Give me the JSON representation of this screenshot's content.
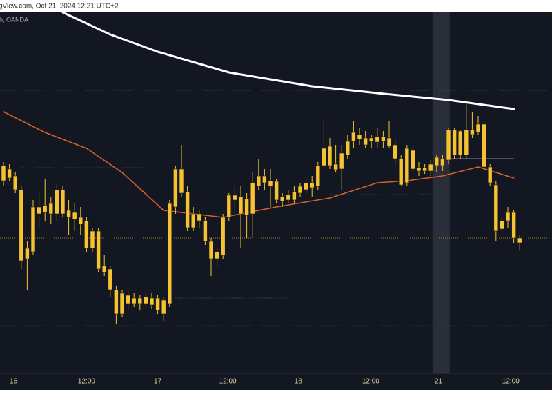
{
  "header": {
    "source": "gView.com, Oct 21, 2024 12:21 UTC+2"
  },
  "chart_data": {
    "type": "candlestick",
    "symbol": "h, OANDA",
    "x": [
      0,
      1,
      2,
      3,
      4,
      5,
      6,
      7,
      8,
      9,
      10,
      11,
      12,
      13,
      14,
      15,
      16,
      17,
      18,
      19,
      20,
      21,
      22,
      23,
      24,
      25,
      26,
      27,
      28,
      29,
      30,
      31,
      32,
      33,
      34,
      35,
      36,
      37,
      38,
      39,
      40,
      41,
      42,
      43,
      44,
      45,
      46,
      47,
      48,
      49,
      50,
      51,
      52,
      53,
      54,
      55,
      56,
      57,
      58,
      59,
      60,
      61,
      62,
      63,
      64,
      65,
      66,
      67,
      68,
      69,
      70,
      71,
      72,
      73,
      74,
      75,
      76,
      77,
      78,
      79,
      80,
      81,
      82,
      83,
      84,
      85,
      86,
      87
    ],
    "open": [
      300,
      295,
      285,
      265,
      165,
      175,
      230,
      232,
      245,
      230,
      265,
      235,
      232,
      225,
      220,
      180,
      205,
      155,
      150,
      120,
      85,
      112,
      108,
      100,
      100,
      108,
      108,
      105,
      100,
      240,
      295,
      262,
      210,
      230,
      220,
      190,
      175,
      170,
      225,
      257,
      255,
      228,
      230,
      270,
      285,
      278,
      277,
      255,
      250,
      250,
      260,
      265,
      275,
      270,
      300,
      328,
      302,
      295,
      315,
      335,
      345,
      340,
      335,
      334,
      342,
      340,
      330,
      310,
      275,
      322,
      297,
      292,
      292,
      300,
      310,
      308,
      352,
      315,
      315,
      352,
      348,
      360,
      298,
      272,
      208,
      220,
      232,
      195
    ],
    "high": [
      305,
      302,
      290,
      270,
      190,
      250,
      260,
      280,
      255,
      275,
      270,
      250,
      245,
      240,
      225,
      210,
      210,
      170,
      155,
      125,
      120,
      120,
      115,
      112,
      115,
      115,
      112,
      110,
      250,
      300,
      330,
      270,
      240,
      235,
      225,
      195,
      180,
      230,
      260,
      270,
      270,
      260,
      290,
      310,
      295,
      295,
      280,
      260,
      265,
      270,
      275,
      280,
      285,
      305,
      368,
      340,
      330,
      330,
      345,
      365,
      355,
      350,
      345,
      355,
      350,
      365,
      340,
      315,
      330,
      328,
      305,
      302,
      308,
      315,
      315,
      355,
      355,
      352,
      392,
      378,
      372,
      365,
      302,
      278,
      225,
      240,
      235,
      200
    ],
    "low": [
      270,
      278,
      260,
      150,
      120,
      170,
      210,
      220,
      215,
      220,
      225,
      200,
      205,
      200,
      175,
      175,
      145,
      140,
      110,
      70,
      80,
      90,
      95,
      90,
      95,
      92,
      85,
      75,
      95,
      230,
      255,
      205,
      205,
      210,
      185,
      140,
      155,
      165,
      220,
      230,
      180,
      195,
      195,
      265,
      265,
      240,
      245,
      240,
      245,
      245,
      255,
      260,
      255,
      265,
      295,
      295,
      290,
      265,
      310,
      325,
      330,
      325,
      325,
      325,
      325,
      325,
      300,
      270,
      270,
      292,
      285,
      288,
      285,
      290,
      292,
      302,
      310,
      310,
      310,
      340,
      345,
      292,
      270,
      190,
      205,
      210,
      188,
      178
    ],
    "close": [
      278,
      282,
      265,
      162,
      180,
      240,
      240,
      242,
      230,
      265,
      230,
      225,
      222,
      215,
      180,
      205,
      150,
      145,
      120,
      85,
      115,
      100,
      100,
      108,
      110,
      98,
      90,
      85,
      245,
      295,
      260,
      210,
      230,
      220,
      190,
      165,
      165,
      225,
      257,
      250,
      230,
      252,
      275,
      285,
      275,
      270,
      250,
      248,
      258,
      262,
      270,
      275,
      268,
      300,
      325,
      300,
      294,
      318,
      335,
      348,
      338,
      330,
      340,
      342,
      335,
      328,
      310,
      272,
      325,
      295,
      292,
      297,
      302,
      312,
      300,
      352,
      315,
      350,
      352,
      345,
      360,
      298,
      275,
      205,
      220,
      232,
      195,
      188
    ],
    "candle_color": "#f5c332",
    "lines": [
      {
        "color": "#ffffff",
        "x": [
          10,
          18,
          26,
          38,
          52,
          63,
          75,
          86
        ],
        "values": [
          522,
          490,
          465,
          435,
          415,
          405,
          395,
          382
        ]
      },
      {
        "color": "#d9602b",
        "x": [
          0,
          7,
          14,
          20,
          27,
          32,
          37,
          46,
          55,
          63,
          68,
          74,
          80,
          86
        ],
        "values": [
          378,
          348,
          325,
          290,
          235,
          230,
          225,
          240,
          253,
          275,
          278,
          285,
          298,
          282
        ]
      }
    ],
    "levels": [
      {
        "value": 409,
        "from": -0.58,
        "to": 92.44,
        "color": "#4a4e5a",
        "style": "dotted"
      },
      {
        "value": 195,
        "from": -0.58,
        "to": 92.44,
        "color": "#9a7f2a",
        "style": "dotted"
      },
      {
        "value": 68,
        "from": -0.58,
        "to": 92.44,
        "color": "#3a3e4a",
        "style": "dotted"
      },
      {
        "value": 297,
        "from": 3,
        "to": 24,
        "color": "#4a4e5a",
        "style": "dotted"
      },
      {
        "value": 108,
        "from": 29,
        "to": 48,
        "color": "#4a4e5a",
        "style": "dotted"
      },
      {
        "value": 258,
        "from": 55,
        "to": 72,
        "color": "#4a4e5a",
        "style": "dotted"
      },
      {
        "value": 310,
        "from": 75,
        "to": 86,
        "color": "#9a7fa8",
        "style": "solid"
      }
    ],
    "highlight": [
      72.3,
      75.2
    ],
    "xlim": [
      -0.58,
      92.44
    ],
    "ylim": [
      0,
      522
    ],
    "xticks": [
      {
        "value": 1.7,
        "label": "16"
      },
      {
        "value": 14,
        "label": "12:00"
      },
      {
        "value": 26,
        "label": "17"
      },
      {
        "value": 37.8,
        "label": "12:00"
      },
      {
        "value": 49.7,
        "label": "18"
      },
      {
        "value": 61.9,
        "label": "12:00"
      },
      {
        "value": 73.3,
        "label": "21"
      },
      {
        "value": 85.5,
        "label": "12:00"
      }
    ]
  }
}
